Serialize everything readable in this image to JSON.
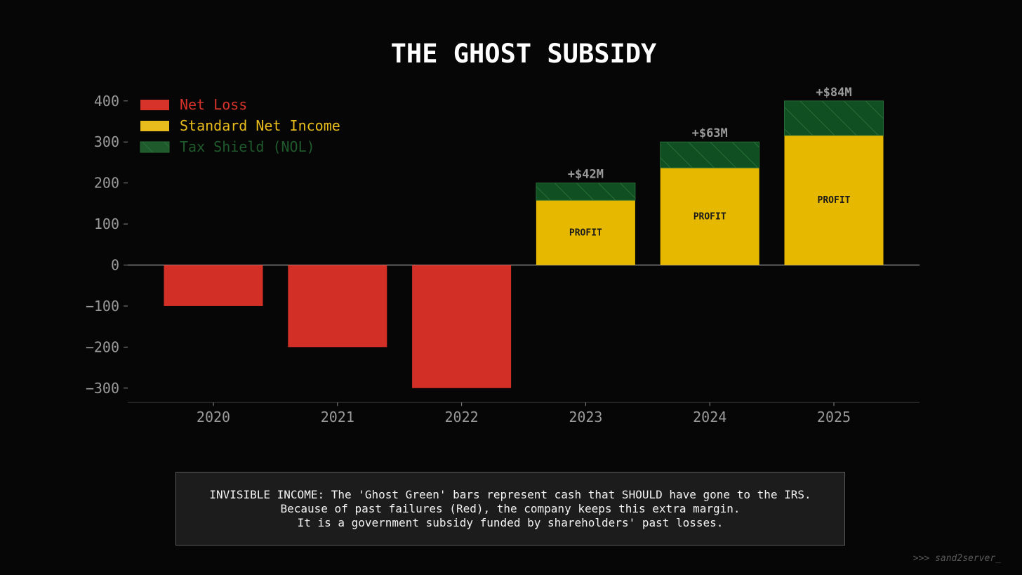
{
  "chart_data": {
    "type": "bar",
    "title": "THE GHOST SUBSIDY",
    "categories": [
      "2020",
      "2021",
      "2022",
      "2023",
      "2024",
      "2025"
    ],
    "series": [
      {
        "name": "Net Loss",
        "color": "#d22f27",
        "values": [
          -100,
          -200,
          -300,
          null,
          null,
          null
        ]
      },
      {
        "name": "Standard Net Income",
        "color": "#e6b800",
        "values": [
          null,
          null,
          null,
          158,
          237,
          316
        ]
      },
      {
        "name": "Tax Shield (NOL)",
        "color": "#0f4f22",
        "values": [
          null,
          null,
          null,
          42,
          63,
          84
        ]
      }
    ],
    "legend_colors": [
      "#d8332b",
      "#e8bc1c",
      "#1f5a2c"
    ],
    "bar_labels": [
      "PROFIT",
      "PROFIT",
      "PROFIT"
    ],
    "top_labels": [
      "+$42M",
      "+$63M",
      "+$84M"
    ],
    "ylim": [
      -335,
      400
    ],
    "yticks": [
      -300,
      -200,
      -100,
      0,
      100,
      200,
      300,
      400
    ],
    "ytick_labels": [
      "−300",
      "−200",
      "−100",
      "0",
      "100",
      "200",
      "300",
      "400"
    ],
    "xlabel": "",
    "ylabel": "",
    "legend_position": "top-left"
  },
  "note": {
    "lines": [
      "INVISIBLE INCOME: The 'Ghost Green' bars represent cash that SHOULD have gone to the IRS.",
      "Because of past failures (Red), the company keeps this extra margin.",
      "It is a government subsidy funded by shareholders' past losses."
    ]
  },
  "watermark": ">>> sand2server_"
}
